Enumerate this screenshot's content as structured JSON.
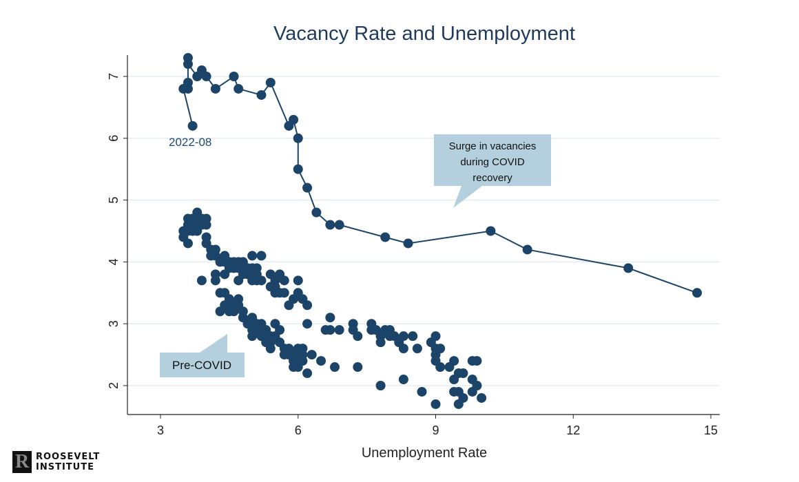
{
  "chart_data": {
    "type": "scatter",
    "title": "Vacancy Rate and Unemployment",
    "xlabel": "Unemployment Rate",
    "ylabel": "",
    "xlim": [
      2.3,
      15.2
    ],
    "ylim": [
      1.55,
      7.55
    ],
    "xticks": [
      3,
      6,
      9,
      12,
      15
    ],
    "yticks": [
      2,
      3,
      4,
      5,
      6,
      7
    ],
    "grid": "horizontal",
    "marker_color": "#1b4468",
    "series": [
      {
        "style": "line-markers",
        "points": [
          [
            14.7,
            3.5
          ],
          [
            13.2,
            3.9
          ],
          [
            11.0,
            4.2
          ],
          [
            10.2,
            4.5
          ],
          [
            8.4,
            4.3
          ],
          [
            7.9,
            4.4
          ],
          [
            6.9,
            4.6
          ],
          [
            6.7,
            4.6
          ],
          [
            6.4,
            4.8
          ],
          [
            6.2,
            5.2
          ],
          [
            6.0,
            5.5
          ],
          [
            6.0,
            6.0
          ],
          [
            5.9,
            6.3
          ],
          [
            5.8,
            6.2
          ],
          [
            5.4,
            6.9
          ],
          [
            5.2,
            6.7
          ],
          [
            4.7,
            6.8
          ],
          [
            4.6,
            7.0
          ],
          [
            4.2,
            6.8
          ],
          [
            4.0,
            7.0
          ],
          [
            3.9,
            7.1
          ],
          [
            3.8,
            7.0
          ],
          [
            3.6,
            7.2
          ],
          [
            3.6,
            7.3
          ],
          [
            3.6,
            6.9
          ],
          [
            3.6,
            6.8
          ],
          [
            3.5,
            6.8
          ],
          [
            3.7,
            6.2
          ]
        ]
      },
      {
        "style": "markers",
        "points": [
          [
            3.5,
            4.5
          ],
          [
            3.5,
            4.4
          ],
          [
            3.6,
            4.3
          ],
          [
            3.6,
            4.6
          ],
          [
            3.6,
            4.7
          ],
          [
            3.7,
            4.5
          ],
          [
            3.7,
            4.6
          ],
          [
            3.7,
            4.7
          ],
          [
            3.8,
            4.8
          ],
          [
            3.8,
            4.6
          ],
          [
            3.8,
            4.5
          ],
          [
            3.9,
            4.7
          ],
          [
            3.9,
            4.6
          ],
          [
            4.0,
            4.7
          ],
          [
            4.0,
            4.6
          ],
          [
            4.0,
            4.4
          ],
          [
            3.6,
            4.5
          ],
          [
            4.0,
            4.3
          ],
          [
            4.1,
            4.2
          ],
          [
            4.1,
            4.1
          ],
          [
            4.2,
            4.1
          ],
          [
            4.2,
            4.2
          ],
          [
            4.3,
            4.0
          ],
          [
            4.4,
            4.0
          ],
          [
            4.4,
            4.1
          ],
          [
            4.5,
            4.0
          ],
          [
            3.9,
            3.7
          ],
          [
            4.2,
            3.7
          ],
          [
            4.2,
            3.8
          ],
          [
            4.4,
            3.8
          ],
          [
            4.5,
            3.9
          ],
          [
            4.6,
            4.0
          ],
          [
            4.6,
            3.9
          ],
          [
            4.7,
            3.9
          ],
          [
            4.7,
            4.0
          ],
          [
            4.8,
            4.0
          ],
          [
            4.8,
            3.8
          ],
          [
            4.9,
            3.9
          ],
          [
            4.9,
            3.8
          ],
          [
            5.0,
            4.1
          ],
          [
            5.0,
            3.9
          ],
          [
            5.0,
            3.8
          ],
          [
            5.1,
            3.9
          ],
          [
            5.1,
            3.8
          ],
          [
            5.2,
            4.1
          ],
          [
            5.2,
            3.7
          ],
          [
            5.0,
            3.7
          ],
          [
            4.7,
            3.7
          ],
          [
            5.1,
            3.7
          ],
          [
            5.4,
            3.6
          ],
          [
            5.5,
            3.6
          ],
          [
            5.5,
            3.7
          ],
          [
            5.6,
            3.8
          ],
          [
            5.4,
            3.8
          ],
          [
            5.6,
            3.5
          ],
          [
            5.7,
            3.5
          ],
          [
            5.7,
            3.7
          ],
          [
            5.8,
            3.3
          ],
          [
            5.9,
            3.4
          ],
          [
            6.0,
            3.7
          ],
          [
            6.0,
            3.5
          ],
          [
            6.1,
            3.4
          ],
          [
            6.2,
            3.3
          ],
          [
            6.2,
            3.0
          ],
          [
            5.5,
            3.5
          ],
          [
            4.3,
            3.5
          ],
          [
            4.4,
            3.5
          ],
          [
            4.3,
            3.2
          ],
          [
            4.4,
            3.3
          ],
          [
            4.5,
            3.4
          ],
          [
            4.5,
            3.2
          ],
          [
            4.6,
            3.3
          ],
          [
            4.6,
            3.2
          ],
          [
            4.7,
            3.4
          ],
          [
            4.7,
            3.3
          ],
          [
            4.8,
            3.2
          ],
          [
            4.5,
            3.3
          ],
          [
            4.8,
            3.1
          ],
          [
            4.9,
            3.0
          ],
          [
            5.0,
            3.1
          ],
          [
            5.0,
            2.9
          ],
          [
            5.0,
            2.8
          ],
          [
            5.1,
            3.0
          ],
          [
            5.1,
            2.9
          ],
          [
            5.2,
            2.8
          ],
          [
            5.2,
            3.0
          ],
          [
            5.3,
            2.9
          ],
          [
            5.4,
            2.7
          ],
          [
            5.4,
            2.8
          ],
          [
            5.5,
            3.0
          ],
          [
            5.5,
            2.8
          ],
          [
            5.6,
            2.7
          ],
          [
            5.6,
            2.9
          ],
          [
            5.7,
            2.6
          ],
          [
            5.7,
            2.5
          ],
          [
            5.8,
            2.6
          ],
          [
            5.8,
            2.5
          ],
          [
            5.9,
            2.5
          ],
          [
            5.9,
            2.4
          ],
          [
            5.9,
            2.3
          ],
          [
            6.0,
            2.6
          ],
          [
            6.0,
            2.4
          ],
          [
            6.0,
            2.3
          ],
          [
            6.1,
            2.5
          ],
          [
            6.1,
            2.4
          ],
          [
            6.2,
            2.2
          ],
          [
            6.1,
            2.6
          ],
          [
            5.4,
            2.6
          ],
          [
            5.3,
            2.7
          ],
          [
            6.3,
            2.5
          ],
          [
            6.5,
            2.4
          ],
          [
            6.8,
            2.3
          ],
          [
            7.3,
            2.3
          ],
          [
            7.8,
            2.0
          ],
          [
            8.3,
            2.1
          ],
          [
            8.7,
            1.9
          ],
          [
            9.0,
            1.7
          ],
          [
            9.5,
            1.7
          ],
          [
            9.6,
            1.8
          ],
          [
            9.4,
            1.9
          ],
          [
            9.5,
            1.9
          ],
          [
            9.8,
            1.9
          ],
          [
            9.9,
            2.0
          ],
          [
            10.0,
            1.8
          ],
          [
            9.8,
            2.1
          ],
          [
            9.8,
            2.4
          ],
          [
            9.9,
            2.4
          ],
          [
            9.6,
            2.2
          ],
          [
            9.4,
            2.4
          ],
          [
            9.5,
            2.2
          ],
          [
            9.3,
            2.3
          ],
          [
            9.4,
            2.1
          ],
          [
            6.6,
            2.9
          ],
          [
            6.7,
            2.9
          ],
          [
            6.7,
            3.1
          ],
          [
            6.9,
            2.9
          ],
          [
            7.2,
            3.0
          ],
          [
            7.2,
            2.9
          ],
          [
            7.3,
            2.8
          ],
          [
            7.6,
            3.0
          ],
          [
            7.6,
            2.9
          ],
          [
            7.7,
            2.9
          ],
          [
            7.8,
            2.8
          ],
          [
            7.8,
            2.7
          ],
          [
            7.9,
            2.9
          ],
          [
            8.0,
            2.8
          ],
          [
            8.1,
            2.8
          ],
          [
            8.2,
            2.7
          ],
          [
            8.3,
            2.6
          ],
          [
            8.3,
            2.8
          ],
          [
            8.5,
            2.8
          ],
          [
            8.6,
            2.6
          ],
          [
            8.9,
            2.7
          ],
          [
            9.0,
            2.8
          ],
          [
            9.0,
            2.6
          ],
          [
            9.0,
            2.5
          ],
          [
            9.0,
            2.4
          ],
          [
            9.1,
            2.6
          ],
          [
            9.1,
            2.3
          ],
          [
            8.0,
            2.9
          ]
        ]
      }
    ],
    "annotations": [
      {
        "text": "2022-08",
        "x": 3.7,
        "y": 6.2
      },
      {
        "text": "Surge in vacancies during COVID recovery",
        "lines": [
          "Surge in vacancies",
          "during COVID",
          "recovery"
        ]
      },
      {
        "text": "Pre-COVID"
      }
    ],
    "callout_color": "#b4cfdd"
  },
  "branding": {
    "line1": "ROOSEVELT",
    "line2": "INSTITUTE",
    "mark": "R"
  }
}
